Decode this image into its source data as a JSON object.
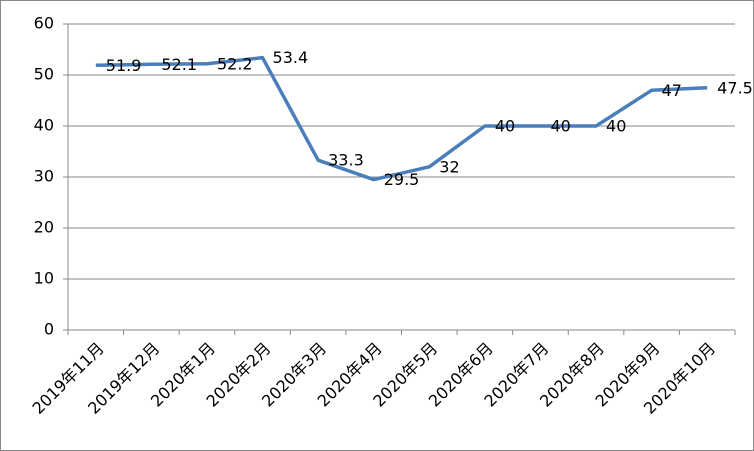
{
  "chart_data": {
    "type": "line",
    "categories": [
      "2019年11月",
      "2019年12月",
      "2020年1月",
      "2020年2月",
      "2020年3月",
      "2020年4月",
      "2020年5月",
      "2020年6月",
      "2020年7月",
      "2020年8月",
      "2020年9月",
      "2020年10月"
    ],
    "values": [
      51.9,
      52.1,
      52.2,
      53.4,
      33.3,
      29.5,
      32,
      40,
      40,
      40,
      47,
      47.5
    ],
    "color": "#4a7ebb",
    "ylim": [
      0,
      60
    ],
    "yticks": [
      0,
      10,
      20,
      30,
      40,
      50,
      60
    ],
    "grid": true
  }
}
